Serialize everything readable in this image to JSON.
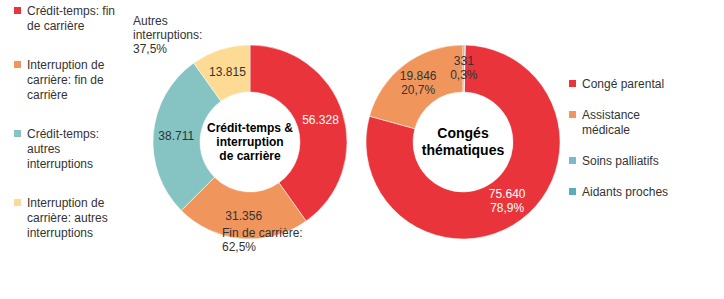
{
  "chart_data": [
    {
      "type": "donut",
      "title": [
        "Crédit-temps &",
        "interruption",
        "de carrière"
      ],
      "categories": [
        "Crédit-temps: fin de carrière",
        "Interruption de carrière: fin de carrière",
        "Crédit-temps: autres interruptions",
        "Interruption de carrière: autres interruptions"
      ],
      "values": [
        56328,
        31356,
        38711,
        13815
      ],
      "value_labels": [
        "56.328",
        "31.356",
        "38.711",
        "13.815"
      ],
      "colors": [
        "#e8343a",
        "#f0965c",
        "#86c3c3",
        "#fddb94"
      ],
      "data_labels": true,
      "legend": "left",
      "annotations": [
        [
          "Fin de carrière:",
          "62,5%"
        ],
        [
          "Autres",
          "interruptions:",
          "37,5%"
        ]
      ]
    },
    {
      "type": "donut",
      "title": [
        "Congés",
        "thématiques"
      ],
      "categories": [
        "Congé parental",
        "Assistance médicale",
        "Soins palliatifs",
        "Aidants proches"
      ],
      "values": [
        75640,
        19846,
        331,
        0
      ],
      "value_labels": [
        "75.640",
        "19.846",
        "331",
        null
      ],
      "percents": [
        78.9,
        20.7,
        0.3,
        null
      ],
      "percent_labels": [
        "78,9%",
        "20,7%",
        "0,3%",
        null
      ],
      "colors": [
        "#e8343a",
        "#f0965c",
        "#7fb8c9",
        "#5aaebb"
      ],
      "data_labels": true,
      "legend": "right"
    }
  ]
}
